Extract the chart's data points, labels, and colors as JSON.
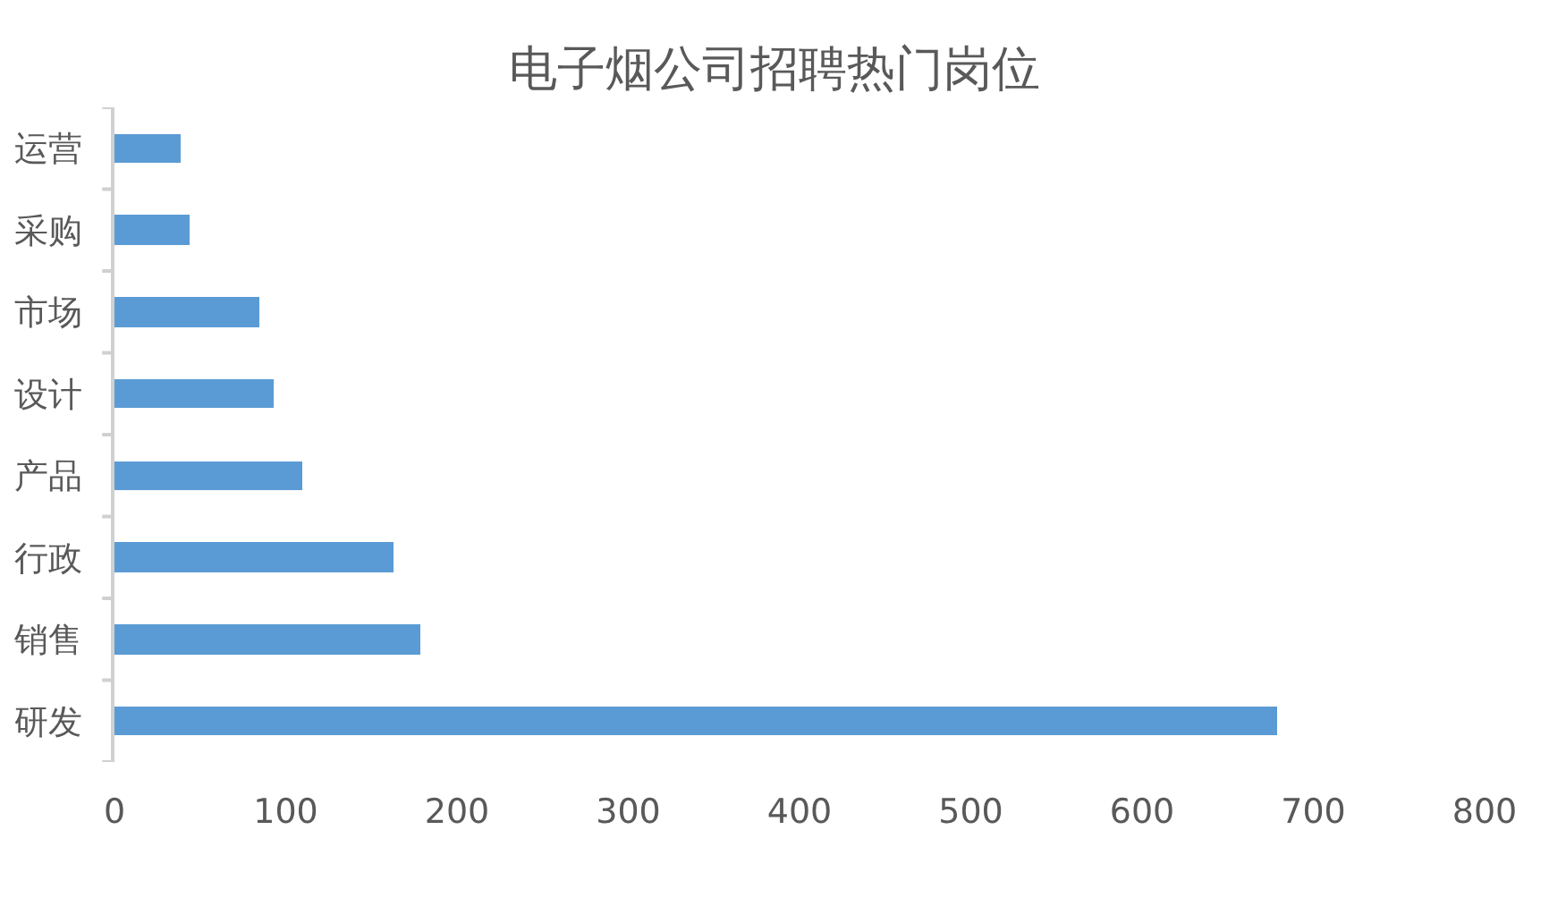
{
  "chart_data": {
    "type": "bar",
    "orientation": "horizontal",
    "title": "电子烟公司招聘热门岗位",
    "categories": [
      "运营",
      "采购",
      "市场",
      "设计",
      "产品",
      "行政",
      "销售",
      "研发"
    ],
    "values": [
      39,
      44,
      85,
      93,
      110,
      163,
      179,
      679
    ],
    "color": "#5b9bd5",
    "xlim": [
      0,
      800
    ],
    "xticks": [
      0,
      100,
      200,
      300,
      400,
      500,
      600,
      700,
      800
    ]
  }
}
